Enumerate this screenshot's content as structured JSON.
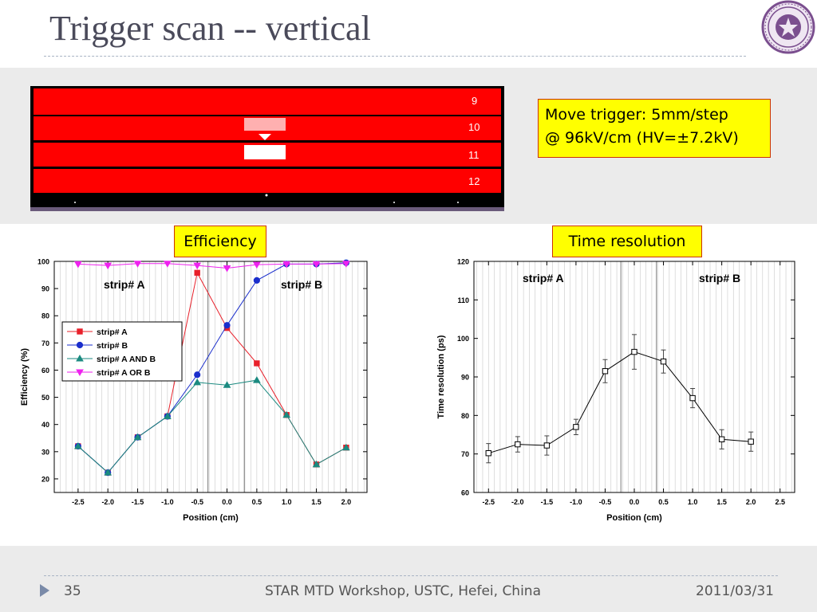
{
  "slide": {
    "title": "Trigger scan -- vertical",
    "page_number": "35",
    "footer_center": "STAR MTD Workshop, USTC, Hefei, China",
    "footer_date": "2011/03/31"
  },
  "detector_image": {
    "strip_numbers": [
      "9",
      "10",
      "11",
      "12"
    ]
  },
  "callout": {
    "line1": "Move trigger: 5mm/step",
    "line2": "@ 96kV/cm (HV=±7.2kV)"
  },
  "labels": {
    "efficiency": "Efficiency",
    "time_resolution": "Time resolution"
  },
  "colors": {
    "box_fill": "#ffff00",
    "box_border": "#cc3300",
    "strip_red": "#ff0000",
    "series_a": "#e8202a",
    "series_b": "#1a2ecc",
    "series_and": "#1b8a80",
    "series_or": "#ee22ee"
  },
  "chart_data": [
    {
      "type": "line",
      "xlabel": "Position (cm)",
      "ylabel": "Efficiency (%)",
      "xlim": [
        -2.9,
        2.35
      ],
      "ylim": [
        15,
        100
      ],
      "xticks": [
        "-2.5",
        "-2.0",
        "-1.5",
        "-1.0",
        "-0.5",
        "0.0",
        "0.5",
        "1.0",
        "1.5",
        "2.0"
      ],
      "yticks": [
        "20",
        "30",
        "40",
        "50",
        "60",
        "70",
        "80",
        "90",
        "100"
      ],
      "grid": "vertical",
      "regions": [
        "strip# A",
        "strip# B"
      ],
      "legend_position": "left",
      "x": [
        -2.5,
        -2.0,
        -1.5,
        -1.0,
        -0.5,
        0.0,
        0.5,
        1.0,
        1.5,
        2.0
      ],
      "series": [
        {
          "name": "strip# A",
          "marker": "square",
          "color": "#e8202a",
          "values": [
            32,
            22.3,
            35.3,
            43,
            95.8,
            75.5,
            62.5,
            43.5,
            25.3,
            31.5
          ]
        },
        {
          "name": "strip# B",
          "marker": "circle",
          "color": "#1a2ecc",
          "values": [
            32,
            22.3,
            35.3,
            43,
            58.3,
            76.5,
            93,
            99,
            99,
            99.5
          ]
        },
        {
          "name": "strip# A  AND B",
          "marker": "triangle-up",
          "color": "#1b8a80",
          "values": [
            32,
            22.3,
            35.3,
            43,
            55.5,
            54.5,
            56.3,
            43.5,
            25.3,
            31.5
          ]
        },
        {
          "name": "strip# A OR B",
          "marker": "triangle-down",
          "color": "#ee22ee",
          "values": [
            99,
            98.5,
            99.2,
            99.2,
            98.5,
            97.5,
            98.8,
            99,
            99,
            99.2
          ]
        }
      ]
    },
    {
      "type": "line",
      "xlabel": "Position (cm)",
      "ylabel": "Time resolution (ps)",
      "xlim": [
        -2.75,
        2.75
      ],
      "ylim": [
        60,
        120
      ],
      "xticks": [
        "-2.5",
        "-2.0",
        "-1.5",
        "-1.0",
        "-0.5",
        "0.0",
        "0.5",
        "1.0",
        "1.5",
        "2.0",
        "2.5"
      ],
      "yticks": [
        "60",
        "70",
        "80",
        "90",
        "100",
        "110",
        "120"
      ],
      "grid": "vertical",
      "regions": [
        "strip# A",
        "strip# B"
      ],
      "x": [
        -2.5,
        -2.0,
        -1.5,
        -1.0,
        -0.5,
        0.0,
        0.5,
        1.0,
        1.5,
        2.0
      ],
      "values": [
        70.2,
        72.5,
        72.2,
        77,
        91.5,
        96.5,
        94,
        84.5,
        73.8,
        73.2
      ],
      "errors": [
        2.5,
        2.0,
        2.5,
        2.0,
        3.0,
        4.5,
        3.0,
        2.5,
        2.5,
        2.5
      ]
    }
  ]
}
